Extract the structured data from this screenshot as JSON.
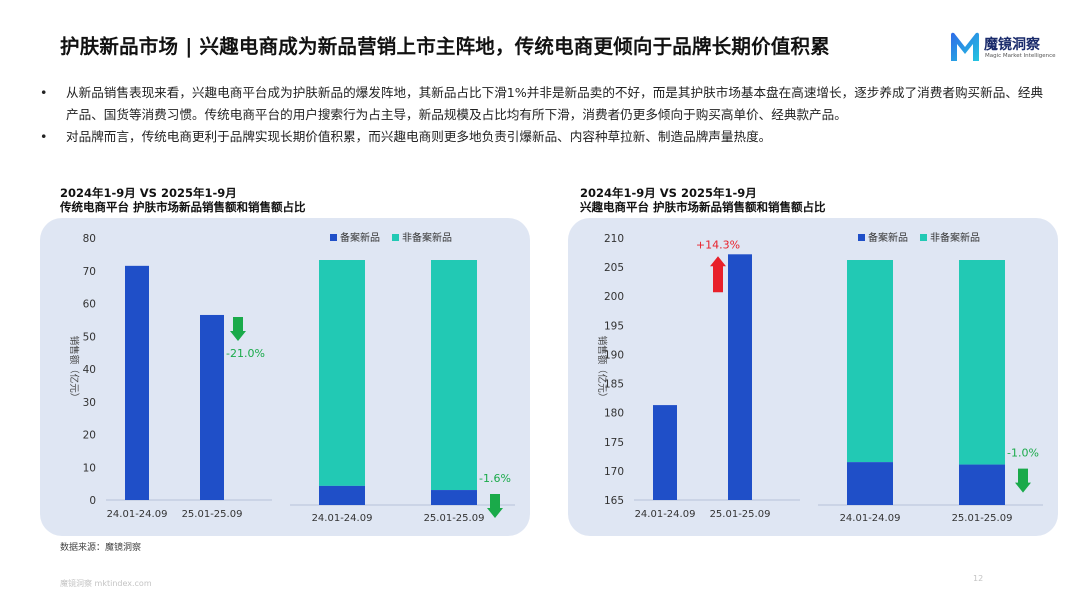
{
  "page": {
    "title": "护肤新品市场 | 兴趣电商成为新品营销上市主阵地，传统电商更倾向于品牌长期价值积累",
    "logo_name": "魔镜洞察",
    "logo_sub": "Magic Market Intelligence",
    "bullets": [
      "从新品销售表现来看，兴趣电商平台成为护肤新品的爆发阵地，其新品占比下滑1%并非是新品卖的不好，而是其护肤市场基本盘在高速增长，逐步养成了消费者购买新品、经典产品、国货等消费习惯。传统电商平台的用户搜索行为占主导，新品规模及占比均有所下滑，消费者仍更多倾向于购买高单价、经典款产品。",
      "对品牌而言，传统电商更利于品牌实现长期价值积累，而兴趣电商则更多地负责引爆新品、内容种草拉新、制造品牌声量热度。"
    ],
    "bullet_symbol": "•",
    "source": "数据来源：魔镜洞察",
    "footer": "魔镜洞察 mktindex.com",
    "page_number": "12"
  },
  "colors": {
    "dark_blue": "#1f4fc8",
    "teal": "#22c9b4",
    "panel_bg": "#dfe6f3",
    "up_red": "#e8202a",
    "down_green": "#1aaa4a"
  },
  "chart_data": [
    {
      "type": "bar",
      "title_line1": "2024年1-9月 VS 2025年1-9月",
      "title_line2": "传统电商平台 护肤市场新品销售额和销售额占比",
      "ylabel": "销售额（亿元）",
      "ylim": [
        0,
        80
      ],
      "yticks": [
        "0",
        "10",
        "20",
        "30",
        "40",
        "50",
        "60",
        "70",
        "80"
      ],
      "categories": [
        "24.01-24.09",
        "25.01-25.09"
      ],
      "values": [
        71.5,
        56.5
      ],
      "change_label": "-21.0%",
      "change_direction": "down",
      "share_legend": [
        "备案新品",
        "非备案新品"
      ],
      "share_categories": [
        "24.01-24.09",
        "25.01-25.09"
      ],
      "share_values": [
        [
          7.8,
          92.2
        ],
        [
          6.1,
          93.9
        ]
      ],
      "share_change_label": "-1.6%",
      "share_change_direction": "down"
    },
    {
      "type": "bar",
      "title_line1": "2024年1-9月 VS 2025年1-9月",
      "title_line2": "兴趣电商平台 护肤市场新品销售额和销售额占比",
      "ylabel": "销售额（亿元）",
      "ylim": [
        165,
        210
      ],
      "yticks": [
        "165",
        "170",
        "175",
        "180",
        "185",
        "190",
        "195",
        "200",
        "205",
        "210"
      ],
      "categories": [
        "24.01-24.09",
        "25.01-25.09"
      ],
      "values": [
        181.3,
        207.2
      ],
      "change_label": "+14.3%",
      "change_direction": "up",
      "share_legend": [
        "备案新品",
        "非备案新品"
      ],
      "share_categories": [
        "24.01-24.09",
        "25.01-25.09"
      ],
      "share_values": [
        [
          17.5,
          82.5
        ],
        [
          16.5,
          83.5
        ]
      ],
      "share_change_label": "-1.0%",
      "share_change_direction": "down"
    }
  ]
}
